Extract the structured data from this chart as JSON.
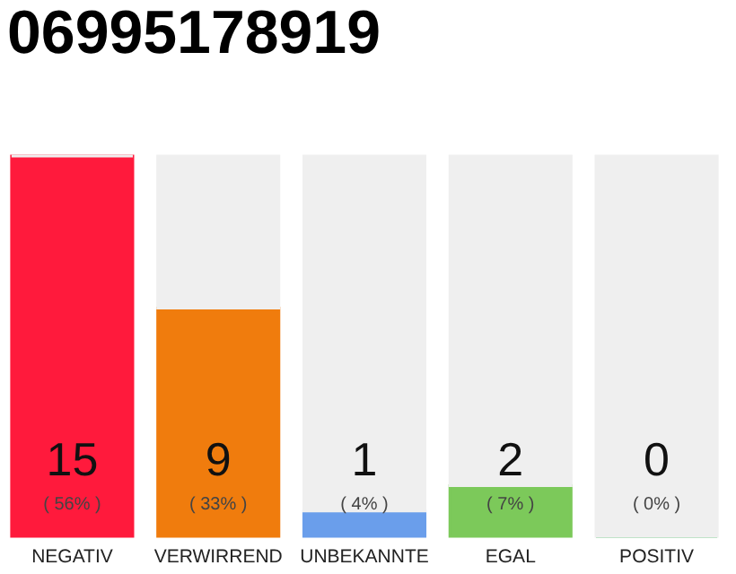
{
  "chart_data": {
    "type": "bar",
    "title": "06995178919",
    "categories": [
      "NEGATIV",
      "VERWIRREND",
      "UNBEKANNTE",
      "EGAL",
      "POSITIV"
    ],
    "stacked": true,
    "series": [
      {
        "values": [
          15,
          9,
          1,
          2,
          0
        ],
        "colors": [
          "#ff1a3c",
          "#f07c0d",
          "#6a9eeb",
          "#7cc95a",
          "#22aa44"
        ],
        "value_labels": [
          "15",
          "9",
          "1",
          "2",
          "0"
        ]
      },
      {
        "values": [
          0,
          6,
          14,
          13,
          15
        ],
        "color": "#efefef"
      }
    ],
    "ylim": [
      0,
      15
    ],
    "tick_labels": "x",
    "grid": false,
    "annotations": [
      "( 56% )",
      "( 33% )",
      "( 4% )",
      "( 7% )",
      "( 0% )"
    ]
  }
}
